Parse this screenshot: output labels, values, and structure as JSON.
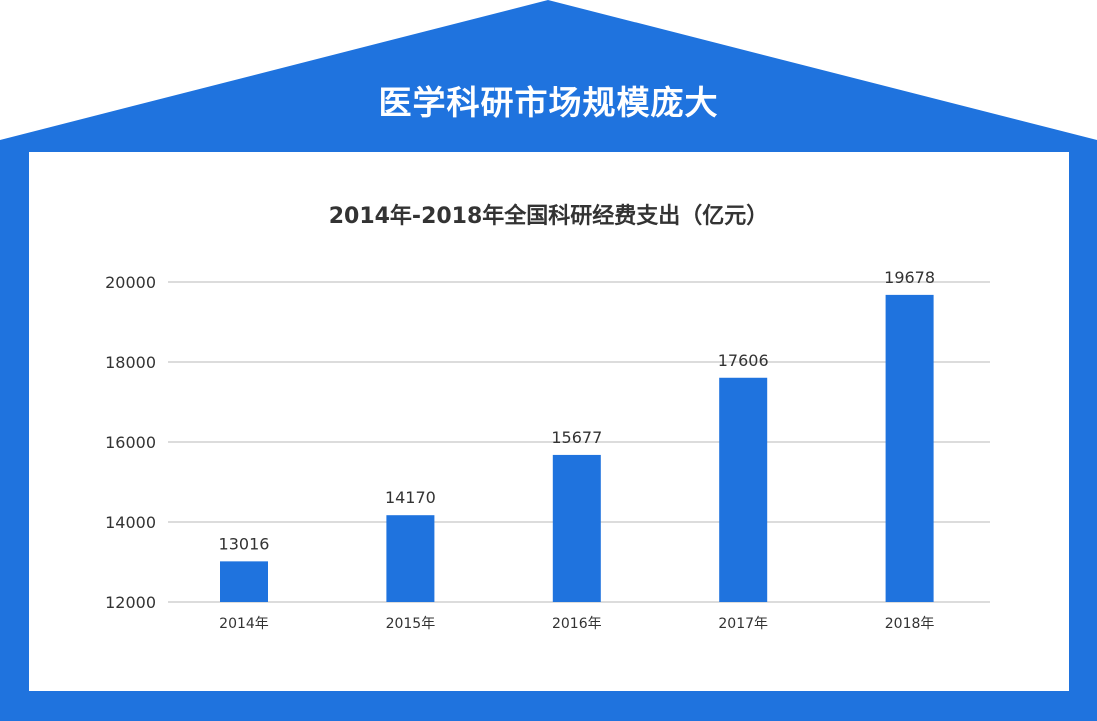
{
  "banner": {
    "title": "医学科研市场规模庞大"
  },
  "colors": {
    "frame": "#1f73de",
    "bar": "#1f73de",
    "grid": "#d0d0d0",
    "text": "#333333"
  },
  "chart_data": {
    "type": "bar",
    "title": "2014年-2018年全国科研经费支出（亿元）",
    "xlabel": "",
    "ylabel": "",
    "categories": [
      "2014年",
      "2015年",
      "2016年",
      "2017年",
      "2018年"
    ],
    "values": [
      13016,
      14170,
      15677,
      17606,
      19678
    ],
    "ylim": [
      12000,
      20000
    ],
    "yticks": [
      12000,
      14000,
      16000,
      18000,
      20000
    ],
    "grid": true,
    "legend": "none",
    "data_labels": true
  }
}
